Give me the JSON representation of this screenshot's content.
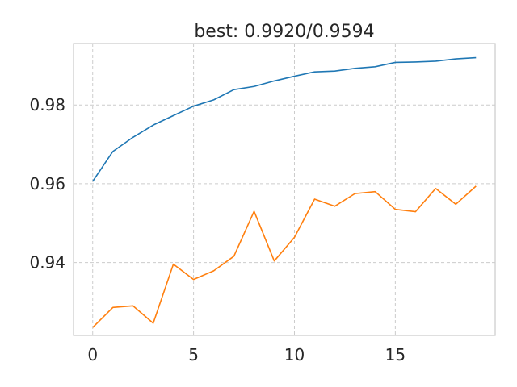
{
  "chart_data": {
    "type": "line",
    "title": "best: 0.9920/0.9594",
    "xlabel": "",
    "ylabel": "",
    "xlim": [
      -0.95,
      19.95
    ],
    "ylim": [
      0.9215,
      0.9956
    ],
    "x_ticks": [
      0,
      5,
      10,
      15
    ],
    "y_ticks": [
      0.94,
      0.96,
      0.98
    ],
    "y_tick_labels": [
      "0.94",
      "0.96",
      "0.98"
    ],
    "grid": true,
    "series": [
      {
        "color": "#1f77b4",
        "x": [
          0,
          1,
          2,
          3,
          4,
          5,
          6,
          7,
          8,
          9,
          10,
          11,
          12,
          13,
          14,
          15,
          16,
          17,
          18,
          19
        ],
        "values": [
          0.9606,
          0.9682,
          0.9718,
          0.9749,
          0.9773,
          0.9797,
          0.9813,
          0.9839,
          0.9847,
          0.9861,
          0.9873,
          0.9884,
          0.9886,
          0.9893,
          0.9897,
          0.9908,
          0.9909,
          0.9911,
          0.9917,
          0.992
        ]
      },
      {
        "color": "#ff7f0e",
        "x": [
          0,
          1,
          2,
          3,
          4,
          5,
          6,
          7,
          8,
          9,
          10,
          11,
          12,
          13,
          14,
          15,
          16,
          17,
          18,
          19
        ],
        "values": [
          0.9235,
          0.9286,
          0.929,
          0.9246,
          0.9396,
          0.9357,
          0.9379,
          0.9416,
          0.953,
          0.9404,
          0.9464,
          0.9561,
          0.9543,
          0.9575,
          0.958,
          0.9535,
          0.9529,
          0.9588,
          0.9548,
          0.9594
        ]
      }
    ]
  }
}
